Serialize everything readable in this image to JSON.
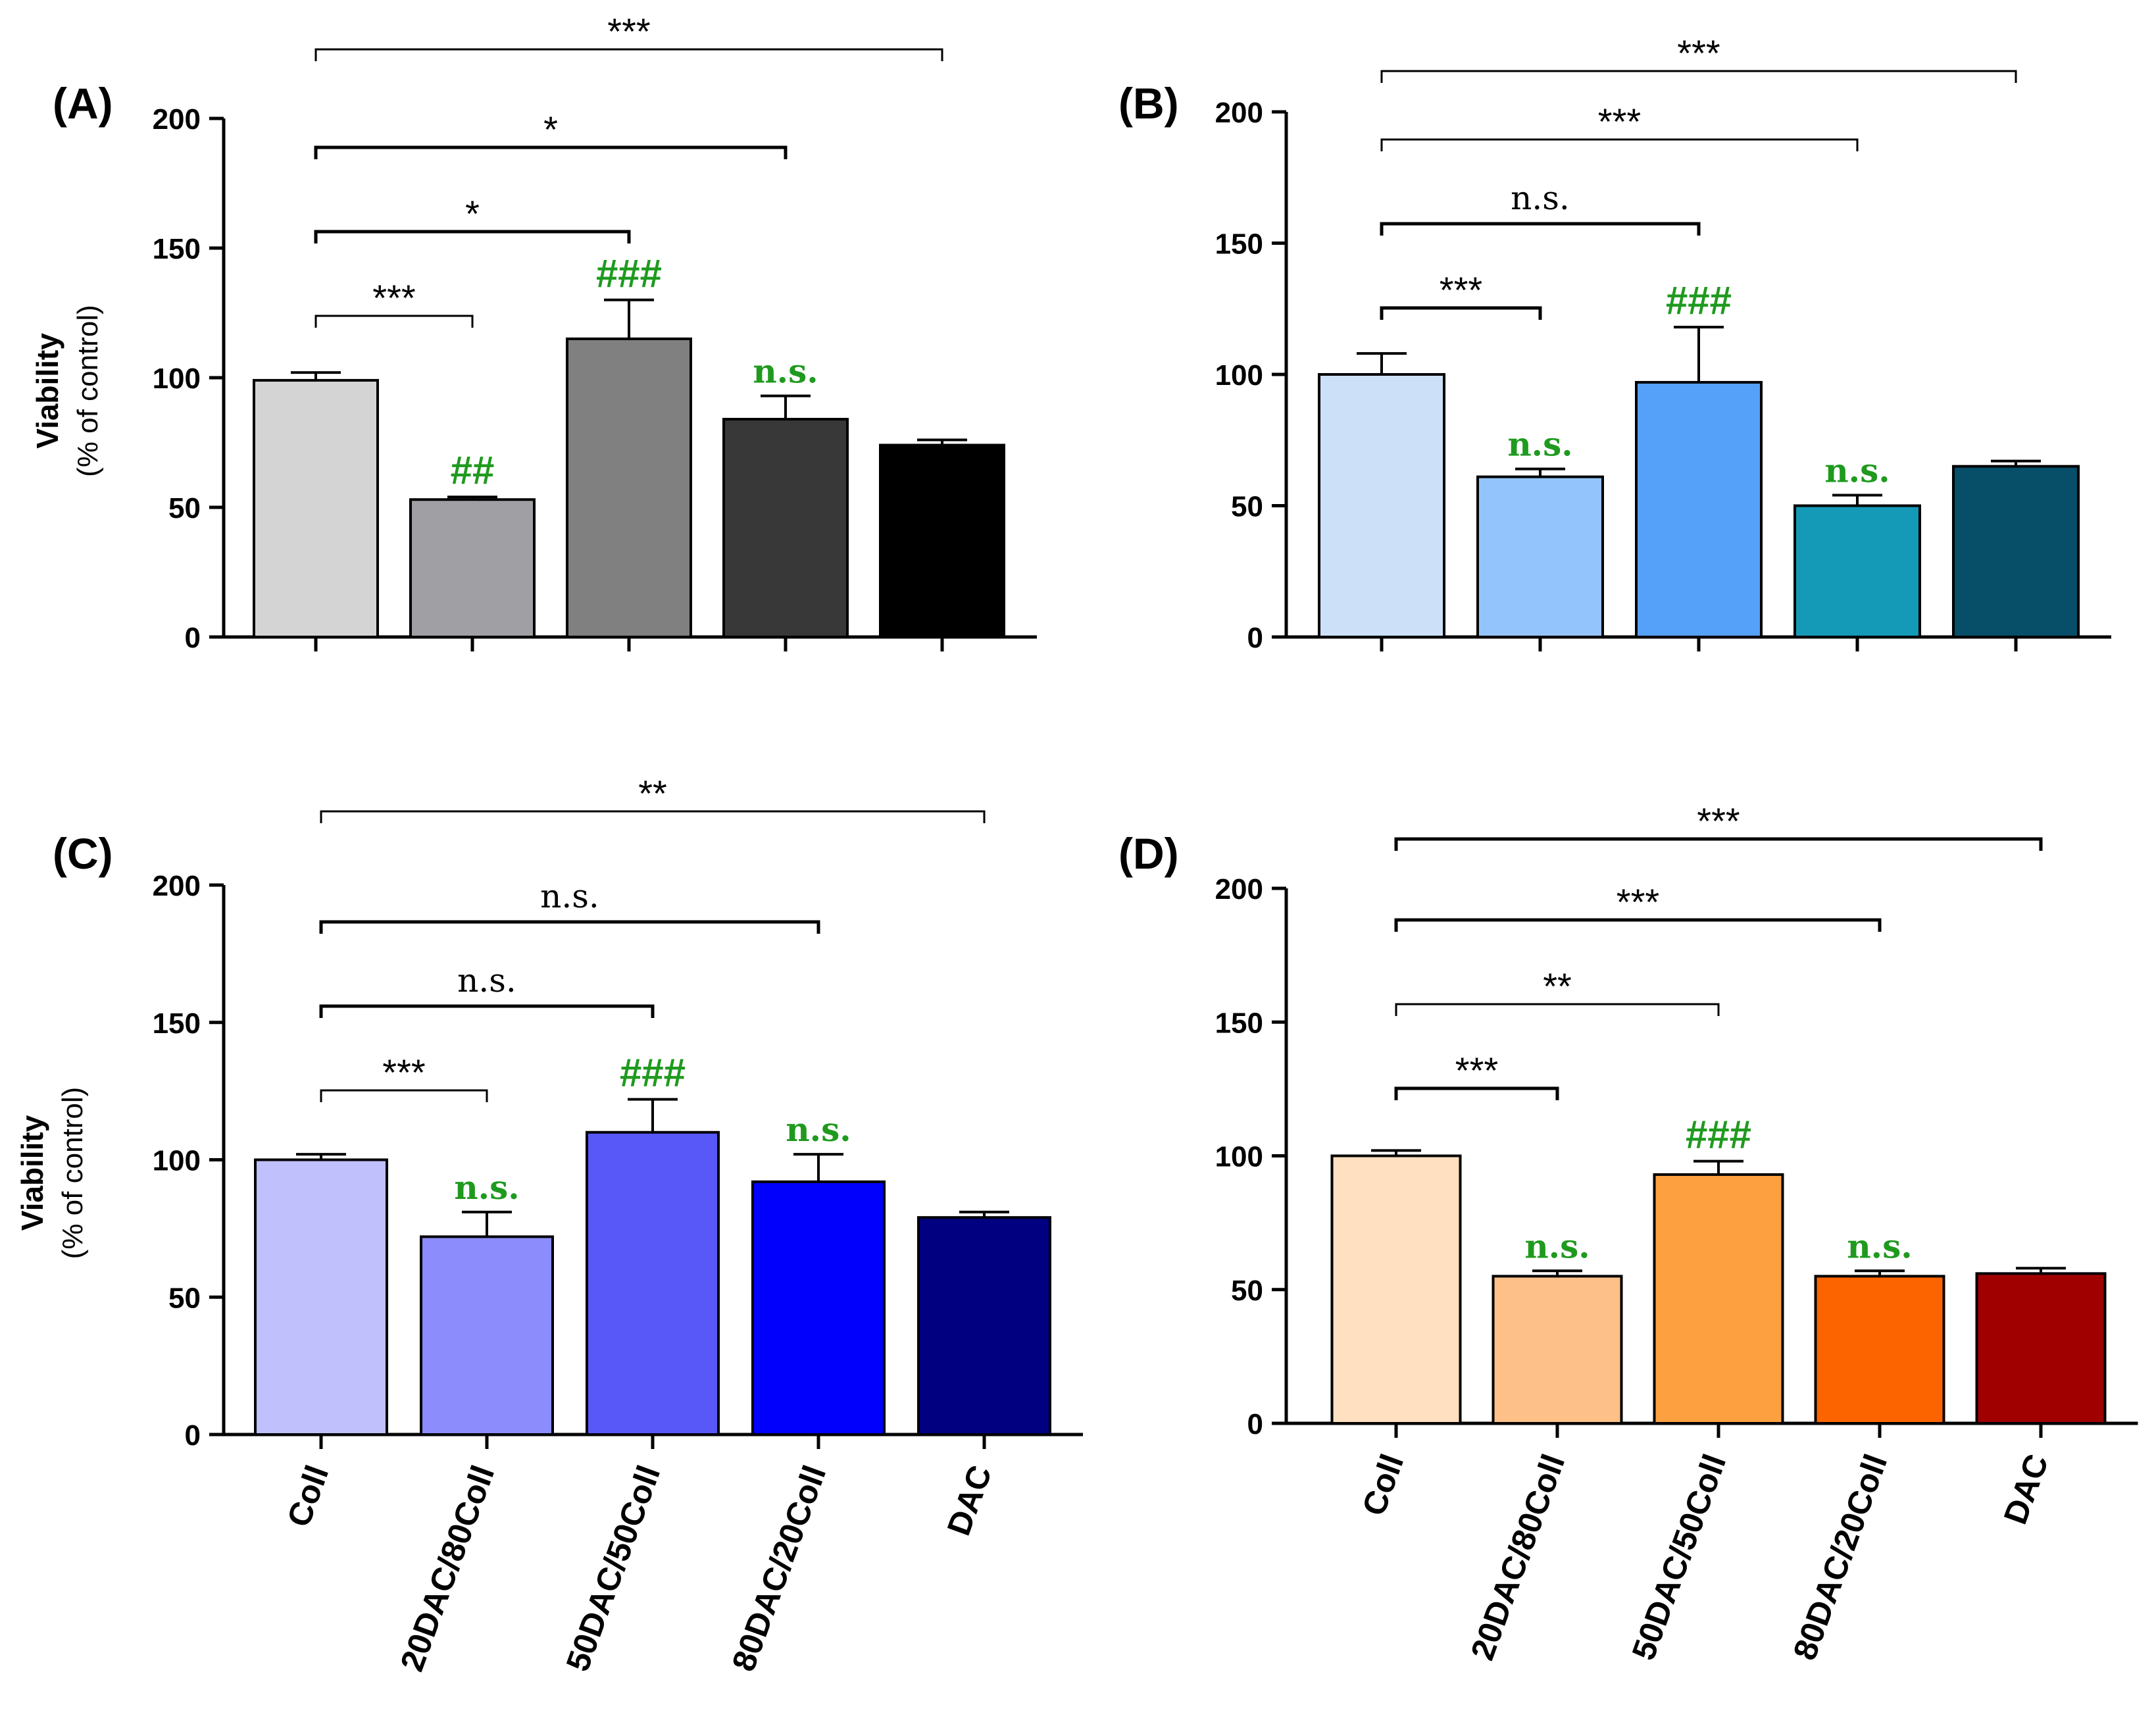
{
  "figure": {
    "ylabel_main": "Viability",
    "ylabel_sub": "(% of control)"
  },
  "chart_data": [
    {
      "panel": "(A)",
      "type": "bar",
      "categories": [
        "Coll",
        "20DAC/80Coll",
        "50DAC/50Coll",
        "80DAC/20Coll",
        "DAC"
      ],
      "show_category_labels": false,
      "show_ylabel": true,
      "values": [
        99,
        53,
        115,
        84,
        74
      ],
      "errors": [
        3,
        1,
        15,
        9,
        2
      ],
      "colors": [
        "#d4d4d4",
        "#a0a0a4",
        "#808080",
        "#383838",
        "#000000"
      ],
      "ylim": [
        0,
        200
      ],
      "yticks": [
        0,
        50,
        100,
        150,
        200
      ],
      "bar_annotations": [
        {
          "bar": 1,
          "text": "##"
        },
        {
          "bar": 2,
          "text": "###"
        },
        {
          "bar": 3,
          "text": "n.s."
        }
      ],
      "brackets": [
        {
          "from": 0,
          "to": 1,
          "text": "***",
          "level": 0,
          "thick": false
        },
        {
          "from": 0,
          "to": 2,
          "text": "*",
          "level": 1,
          "thick": true
        },
        {
          "from": 0,
          "to": 3,
          "text": "*",
          "level": 2,
          "thick": true
        },
        {
          "from": 0,
          "to": 4,
          "text": "***",
          "level": 3,
          "thick": false
        }
      ]
    },
    {
      "panel": "(B)",
      "type": "bar",
      "categories": [
        "Coll",
        "20DAC/80Coll",
        "50DAC/50Coll",
        "80DAC/20Coll",
        "DAC"
      ],
      "show_category_labels": false,
      "show_ylabel": false,
      "values": [
        100,
        61,
        97,
        50,
        65
      ],
      "errors": [
        8,
        3,
        21,
        4,
        2
      ],
      "colors": [
        "#cce0f8",
        "#94c4fc",
        "#55a0f8",
        "#1499b6",
        "#074e68"
      ],
      "ylim": [
        0,
        200
      ],
      "yticks": [
        0,
        50,
        100,
        150,
        200
      ],
      "bar_annotations": [
        {
          "bar": 1,
          "text": "n.s."
        },
        {
          "bar": 2,
          "text": "###"
        },
        {
          "bar": 3,
          "text": "n.s."
        }
      ],
      "brackets": [
        {
          "from": 0,
          "to": 1,
          "text": "***",
          "level": 0,
          "thick": true
        },
        {
          "from": 0,
          "to": 2,
          "text": "n.s.",
          "level": 1,
          "thick": true
        },
        {
          "from": 0,
          "to": 3,
          "text": "***",
          "level": 2,
          "thick": false
        },
        {
          "from": 0,
          "to": 4,
          "text": "***",
          "level": 3,
          "thick": false
        }
      ]
    },
    {
      "panel": "(C)",
      "type": "bar",
      "categories": [
        "Coll",
        "20DAC/80Coll",
        "50DAC/50Coll",
        "80DAC/20Coll",
        "DAC"
      ],
      "show_category_labels": true,
      "show_ylabel": true,
      "values": [
        100,
        72,
        110,
        92,
        79
      ],
      "errors": [
        2,
        9,
        12,
        10,
        2
      ],
      "colors": [
        "#c0c0fc",
        "#8c8cfc",
        "#5858f8",
        "#0000fc",
        "#000080"
      ],
      "ylim": [
        0,
        200
      ],
      "yticks": [
        0,
        50,
        100,
        150,
        200
      ],
      "bar_annotations": [
        {
          "bar": 1,
          "text": "n.s."
        },
        {
          "bar": 2,
          "text": "###"
        },
        {
          "bar": 3,
          "text": "n.s."
        }
      ],
      "brackets": [
        {
          "from": 0,
          "to": 1,
          "text": "***",
          "level": 0,
          "thick": false
        },
        {
          "from": 0,
          "to": 2,
          "text": "n.s.",
          "level": 1,
          "thick": true
        },
        {
          "from": 0,
          "to": 3,
          "text": "n.s.",
          "level": 2,
          "thick": true
        },
        {
          "from": 0,
          "to": 4,
          "text": "**",
          "level": 3,
          "thick": false
        }
      ]
    },
    {
      "panel": "(D)",
      "type": "bar",
      "categories": [
        "Coll",
        "20DAC/80Coll",
        "50DAC/50Coll",
        "80DAC/20Coll",
        "DAC"
      ],
      "show_category_labels": true,
      "show_ylabel": false,
      "values": [
        100,
        55,
        93,
        55,
        56
      ],
      "errors": [
        2,
        2,
        5,
        2,
        2
      ],
      "colors": [
        "#ffe0c0",
        "#fcc088",
        "#fca040",
        "#fc6400",
        "#a00000"
      ],
      "ylim": [
        0,
        200
      ],
      "yticks": [
        0,
        50,
        100,
        150,
        200
      ],
      "bar_annotations": [
        {
          "bar": 1,
          "text": "n.s."
        },
        {
          "bar": 2,
          "text": "###"
        },
        {
          "bar": 3,
          "text": "n.s."
        }
      ],
      "brackets": [
        {
          "from": 0,
          "to": 1,
          "text": "***",
          "level": 0,
          "thick": true
        },
        {
          "from": 0,
          "to": 2,
          "text": "**",
          "level": 1,
          "thick": false
        },
        {
          "from": 0,
          "to": 3,
          "text": "***",
          "level": 2,
          "thick": true
        },
        {
          "from": 0,
          "to": 4,
          "text": "***",
          "level": 3,
          "thick": true
        }
      ]
    }
  ]
}
